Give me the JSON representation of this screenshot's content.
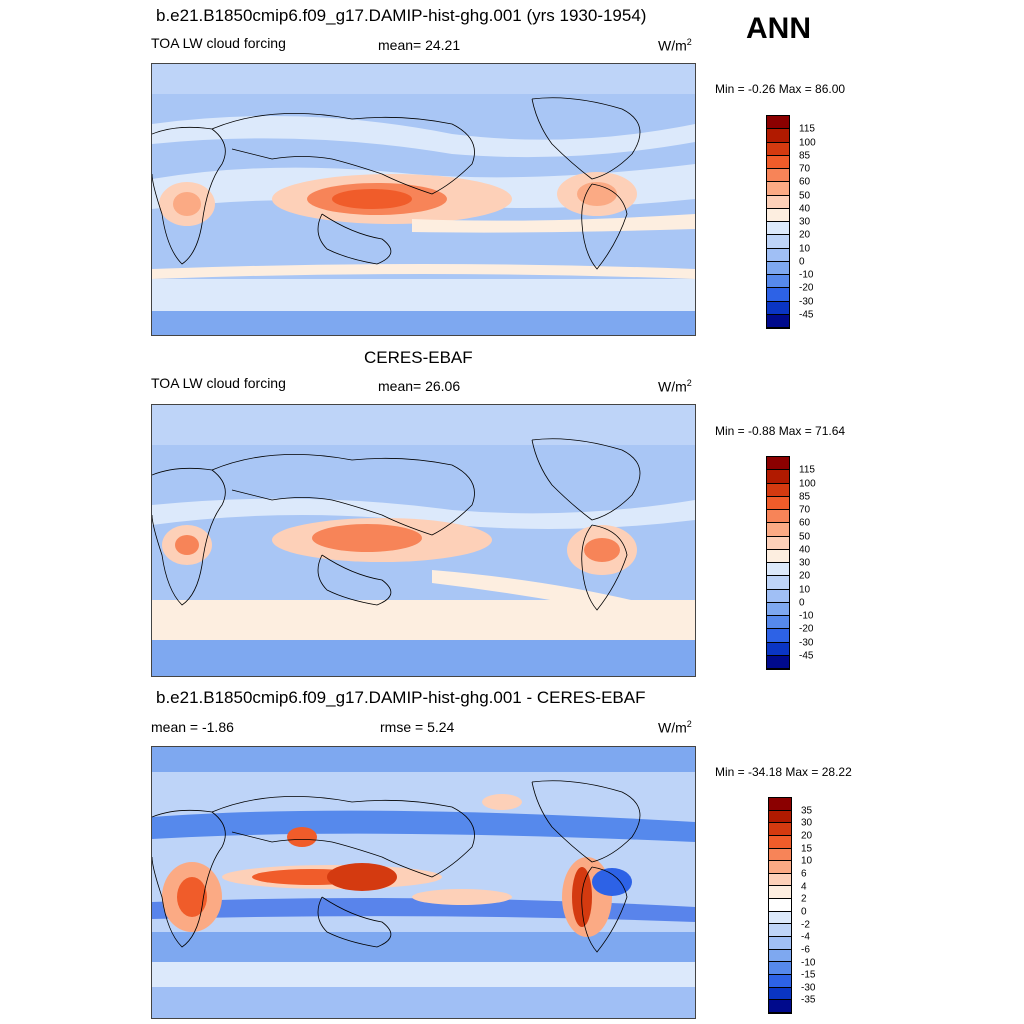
{
  "season": "ANN",
  "panels": [
    {
      "title": "b.e21.B1850cmip6.f09_g17.DAMIP-hist-ghg.001 (yrs 1930-1954)",
      "left": "TOA LW cloud forcing",
      "center": "mean=  24.21",
      "unit": "W/m",
      "unit_sup": "2",
      "minmax": "Min =  -0.26 Max =  86.00",
      "levels": [
        "115",
        "100",
        "85",
        "70",
        "60",
        "50",
        "40",
        "30",
        "20",
        "10",
        "0",
        "-10",
        "-20",
        "-30",
        "-45"
      ]
    },
    {
      "title": "CERES-EBAF",
      "left": "TOA LW cloud forcing",
      "center": "mean=  26.06",
      "unit": "W/m",
      "unit_sup": "2",
      "minmax": "Min =  -0.88 Max =  71.64",
      "levels": [
        "115",
        "100",
        "85",
        "70",
        "60",
        "50",
        "40",
        "30",
        "20",
        "10",
        "0",
        "-10",
        "-20",
        "-30",
        "-45"
      ]
    },
    {
      "title": "b.e21.B1850cmip6.f09_g17.DAMIP-hist-ghg.001 - CERES-EBAF",
      "left": "mean =  -1.86",
      "center": "rmse =   5.24",
      "unit": "W/m",
      "unit_sup": "2",
      "minmax": "Min = -34.18 Max =  28.22",
      "levels": [
        "35",
        "30",
        "20",
        "15",
        "10",
        "6",
        "4",
        "2",
        "0",
        "-2",
        "-4",
        "-6",
        "-10",
        "-15",
        "-30",
        "-35"
      ]
    }
  ],
  "colors": {
    "abs": [
      "#8b0000",
      "#b11a00",
      "#d43a10",
      "#f05c2a",
      "#f78458",
      "#fbaa84",
      "#fdd0b8",
      "#fdeee0",
      "#dce9fb",
      "#bed4f8",
      "#a0bff5",
      "#7ea8f0",
      "#5689ec",
      "#2d62e6",
      "#0a35c4",
      "#000a8c"
    ],
    "diff": [
      "#8b0000",
      "#b11a00",
      "#d43a10",
      "#f05c2a",
      "#f78458",
      "#fbaa84",
      "#fdd0b8",
      "#fdeee0",
      "#ffffff",
      "#dce9fb",
      "#bed4f8",
      "#a0bff5",
      "#7ea8f0",
      "#5689ec",
      "#2d62e6",
      "#0a35c4",
      "#000a8c"
    ]
  }
}
